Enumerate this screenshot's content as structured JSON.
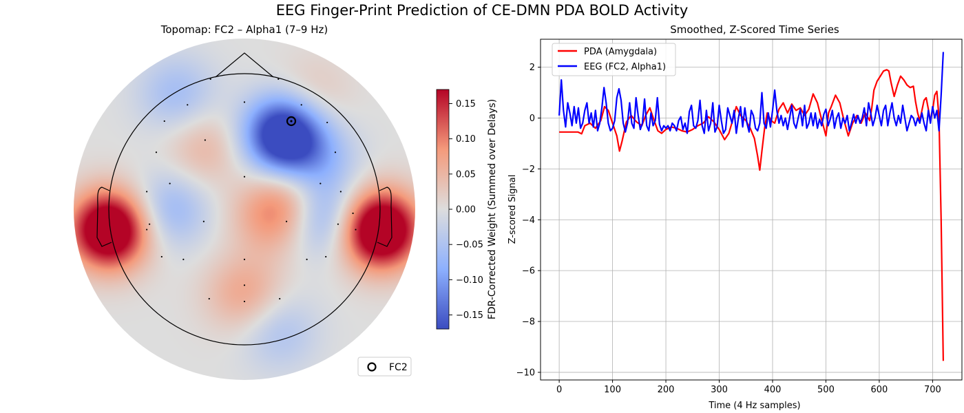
{
  "figure": {
    "suptitle": "EEG Finger-Print Prediction of CE-DMN PDA BOLD Activity"
  },
  "chart_data": [
    {
      "type": "heatmap",
      "subtype": "scalp-topomap",
      "title": "Topomap: FC2 – Alpha1 (7–9 Hz)",
      "colormap": "coolwarm",
      "colors": {
        "low": "#3b4cc0",
        "mid": "#dddddd",
        "high": "#b40426"
      },
      "colorbar": {
        "label": "FDR-Corrected Weight (Summed over Delays)",
        "range": [
          -0.17,
          0.17
        ],
        "ticks": [
          "0.15",
          "0.10",
          "0.05",
          "0.00",
          "−0.05",
          "−0.10",
          "−0.15"
        ],
        "tick_values": [
          0.15,
          0.1,
          0.05,
          0.0,
          -0.05,
          -0.1,
          -0.15
        ]
      },
      "weight_sources": [
        {
          "x": 0.29,
          "y": 0.55,
          "w": -0.24
        },
        {
          "x": -1.0,
          "y": -0.15,
          "w": 0.25
        },
        {
          "x": 1.0,
          "y": -0.15,
          "w": 0.26
        },
        {
          "x": 0.2,
          "y": -0.05,
          "w": 0.08
        },
        {
          "x": 0.35,
          "y": 0.1,
          "w": 0.05
        },
        {
          "x": 0.58,
          "y": -0.06,
          "w": -0.09
        },
        {
          "x": -0.55,
          "y": 0.0,
          "w": -0.07
        },
        {
          "x": 0.0,
          "y": -0.62,
          "w": 0.07
        },
        {
          "x": -0.3,
          "y": 0.45,
          "w": 0.05
        },
        {
          "x": -0.5,
          "y": 0.85,
          "w": -0.06
        },
        {
          "x": 0.48,
          "y": 0.82,
          "w": 0.04
        },
        {
          "x": 0.55,
          "y": 0.35,
          "w": -0.06
        },
        {
          "x": 0.25,
          "y": -0.9,
          "w": -0.05
        }
      ],
      "sensors": [
        [
          -0.25,
          0.96
        ],
        [
          0.25,
          0.96
        ],
        [
          -0.42,
          0.77
        ],
        [
          0.0,
          0.79
        ],
        [
          0.42,
          0.77
        ],
        [
          -0.59,
          0.65
        ],
        [
          0.61,
          0.64
        ],
        [
          -0.29,
          0.51
        ],
        [
          -0.65,
          0.42
        ],
        [
          0.67,
          0.42
        ],
        [
          0.0,
          0.24
        ],
        [
          -0.55,
          0.19
        ],
        [
          0.56,
          0.19
        ],
        [
          -0.72,
          0.13
        ],
        [
          0.71,
          0.13
        ],
        [
          -0.7,
          -0.11
        ],
        [
          0.69,
          -0.11
        ],
        [
          -0.3,
          -0.09
        ],
        [
          0.31,
          -0.09
        ],
        [
          -0.72,
          -0.15
        ],
        [
          0.8,
          -0.03
        ],
        [
          0.82,
          -0.15
        ],
        [
          -0.61,
          -0.35
        ],
        [
          0.6,
          -0.35
        ],
        [
          -0.45,
          -0.37
        ],
        [
          0.46,
          -0.37
        ],
        [
          0.0,
          -0.37
        ],
        [
          0.0,
          -0.56
        ],
        [
          -0.26,
          -0.66
        ],
        [
          0.26,
          -0.66
        ],
        [
          0.0,
          -0.68
        ]
      ],
      "highlight": {
        "channel": "FC2",
        "x": 0.29,
        "y": 0.55
      },
      "legend": {
        "entries": [
          "FC2"
        ],
        "location": "lower-right"
      }
    },
    {
      "type": "line",
      "title": "Smoothed, Z-Scored Time Series",
      "xlabel": "Time (4 Hz samples)",
      "ylabel": "Z-scored Signal",
      "xlim": [
        -35,
        755
      ],
      "ylim": [
        -10.3,
        3.1
      ],
      "xticks": [
        0,
        100,
        200,
        300,
        400,
        500,
        600,
        700
      ],
      "yticks": [
        2,
        0,
        -2,
        -4,
        -6,
        -8,
        -10
      ],
      "grid": true,
      "legend": "top-left",
      "series": [
        {
          "name": "PDA (Amygdala)",
          "color": "#ff0000",
          "x": [
            0,
            15,
            35,
            42,
            48,
            58,
            68,
            78,
            85,
            92,
            100,
            108,
            113,
            118,
            126,
            135,
            145,
            155,
            162,
            170,
            178,
            185,
            192,
            200,
            210,
            220,
            230,
            240,
            250,
            260,
            270,
            280,
            290,
            300,
            310,
            318,
            325,
            332,
            340,
            350,
            358,
            366,
            372,
            376,
            380,
            385,
            390,
            397,
            404,
            412,
            420,
            428,
            436,
            444,
            452,
            460,
            468,
            476,
            484,
            490,
            495,
            500,
            505,
            510,
            518,
            526,
            534,
            542,
            550,
            558,
            566,
            574,
            582,
            586,
            590,
            596,
            602,
            608,
            614,
            618,
            622,
            628,
            634,
            640,
            646,
            652,
            658,
            664,
            668,
            672,
            676,
            680,
            684,
            688,
            692,
            696,
            700,
            704,
            708,
            712,
            716,
            720
          ],
          "y": [
            -0.55,
            -0.55,
            -0.55,
            -0.62,
            -0.3,
            -0.2,
            -0.4,
            -0.1,
            0.45,
            0.3,
            -0.2,
            -0.7,
            -1.3,
            -0.9,
            -0.15,
            0.1,
            -0.15,
            -0.3,
            0.1,
            0.4,
            -0.1,
            -0.5,
            -0.6,
            -0.45,
            -0.35,
            -0.4,
            -0.5,
            -0.55,
            -0.45,
            -0.3,
            -0.2,
            0.05,
            -0.15,
            -0.45,
            -0.85,
            -0.6,
            -0.1,
            0.45,
            0.1,
            -0.1,
            -0.4,
            -0.8,
            -1.5,
            -2.05,
            -1.3,
            -0.4,
            0.2,
            -0.1,
            -0.2,
            0.35,
            0.6,
            0.2,
            0.55,
            0.3,
            0.4,
            0.1,
            0.35,
            0.95,
            0.6,
            0.1,
            -0.3,
            -0.7,
            0.2,
            0.45,
            0.9,
            0.6,
            -0.1,
            -0.7,
            -0.2,
            0.1,
            -0.2,
            0.2,
            -0.1,
            0.4,
            1.1,
            1.45,
            1.65,
            1.85,
            1.9,
            1.85,
            1.4,
            0.85,
            1.3,
            1.65,
            1.5,
            1.3,
            1.2,
            1.25,
            0.65,
            0.2,
            -0.1,
            0.3,
            0.7,
            0.8,
            0.35,
            -0.1,
            0.3,
            0.9,
            1.05,
            0.0,
            -4.0,
            -9.55
          ]
        },
        {
          "name": "EEG (FC2, Alpha1)",
          "color": "#0000ff",
          "x": [
            0,
            4,
            8,
            12,
            16,
            20,
            24,
            28,
            32,
            36,
            40,
            44,
            48,
            52,
            56,
            60,
            64,
            68,
            72,
            76,
            80,
            84,
            88,
            92,
            96,
            100,
            104,
            108,
            112,
            116,
            120,
            124,
            128,
            132,
            136,
            140,
            144,
            148,
            152,
            156,
            160,
            164,
            168,
            172,
            176,
            180,
            184,
            188,
            192,
            196,
            200,
            204,
            208,
            212,
            216,
            220,
            224,
            228,
            232,
            236,
            240,
            244,
            248,
            252,
            256,
            260,
            264,
            268,
            272,
            276,
            280,
            284,
            288,
            292,
            296,
            300,
            304,
            308,
            312,
            316,
            320,
            324,
            328,
            332,
            336,
            340,
            344,
            348,
            352,
            356,
            360,
            364,
            368,
            372,
            376,
            380,
            384,
            388,
            392,
            396,
            400,
            404,
            408,
            412,
            416,
            420,
            424,
            428,
            432,
            436,
            440,
            444,
            448,
            452,
            456,
            460,
            464,
            468,
            472,
            476,
            480,
            484,
            488,
            492,
            496,
            500,
            504,
            508,
            512,
            516,
            520,
            524,
            528,
            532,
            536,
            540,
            544,
            548,
            552,
            556,
            560,
            564,
            568,
            572,
            576,
            580,
            584,
            588,
            592,
            596,
            600,
            604,
            608,
            612,
            616,
            620,
            624,
            628,
            632,
            636,
            640,
            644,
            648,
            652,
            656,
            660,
            664,
            668,
            672,
            676,
            680,
            684,
            688,
            692,
            696,
            700,
            704,
            708,
            712,
            716,
            720
          ],
          "y": [
            0.1,
            1.5,
            0.3,
            -0.35,
            0.6,
            0.2,
            -0.3,
            0.45,
            -0.2,
            0.4,
            -0.4,
            -0.2,
            0.3,
            0.6,
            -0.2,
            0.2,
            -0.35,
            0.3,
            -0.5,
            -0.2,
            0.4,
            1.2,
            0.6,
            -0.2,
            -0.5,
            -0.4,
            -0.1,
            0.8,
            1.15,
            0.7,
            -0.2,
            -0.55,
            -0.2,
            0.6,
            -0.2,
            -0.4,
            0.8,
            0.1,
            -0.45,
            -0.2,
            0.75,
            -0.3,
            -0.5,
            0.2,
            -0.3,
            -0.1,
            0.8,
            -0.25,
            -0.5,
            -0.3,
            -0.4,
            -0.3,
            -0.5,
            -0.2,
            -0.3,
            -0.5,
            -0.1,
            0.05,
            -0.45,
            -0.2,
            -0.6,
            0.25,
            0.5,
            -0.3,
            -0.4,
            -0.1,
            0.7,
            -0.3,
            -0.6,
            0.3,
            -0.5,
            -0.2,
            0.6,
            -0.55,
            -0.35,
            0.5,
            -0.1,
            -0.6,
            -0.45,
            0.4,
            0.1,
            -0.2,
            0.3,
            -0.6,
            0.0,
            0.45,
            -0.35,
            0.4,
            -0.2,
            -0.55,
            0.3,
            0.1,
            -0.4,
            -0.5,
            -0.2,
            1.0,
            -0.2,
            -0.4,
            0.2,
            -0.35,
            0.3,
            1.1,
            0.3,
            -0.2,
            0.1,
            -0.3,
            0.0,
            -0.45,
            0.0,
            0.5,
            -0.2,
            -0.4,
            0.0,
            0.35,
            -0.3,
            0.5,
            -0.4,
            -0.2,
            0.2,
            -0.3,
            0.2,
            -0.4,
            -0.05,
            -0.3,
            0.15,
            0.35,
            -0.3,
            -0.05,
            0.3,
            -0.4,
            0.0,
            0.2,
            -0.4,
            0.0,
            -0.2,
            0.1,
            -0.5,
            -0.2,
            0.15,
            -0.2,
            0.1,
            -0.2,
            0.0,
            0.4,
            -0.3,
            0.6,
            0.2,
            -0.3,
            0.0,
            0.5,
            0.1,
            -0.3,
            0.3,
            0.5,
            -0.3,
            0.2,
            0.6,
            0.0,
            -0.3,
            0.1,
            -0.2,
            0.5,
            0.0,
            -0.5,
            -0.2,
            0.1,
            0.0,
            -0.3,
            0.0,
            -0.2,
            0.2,
            -0.2,
            -0.5,
            0.3,
            -0.2,
            0.45,
            0.0,
            0.3,
            -0.5,
            0.9,
            2.6
          ]
        }
      ]
    }
  ]
}
